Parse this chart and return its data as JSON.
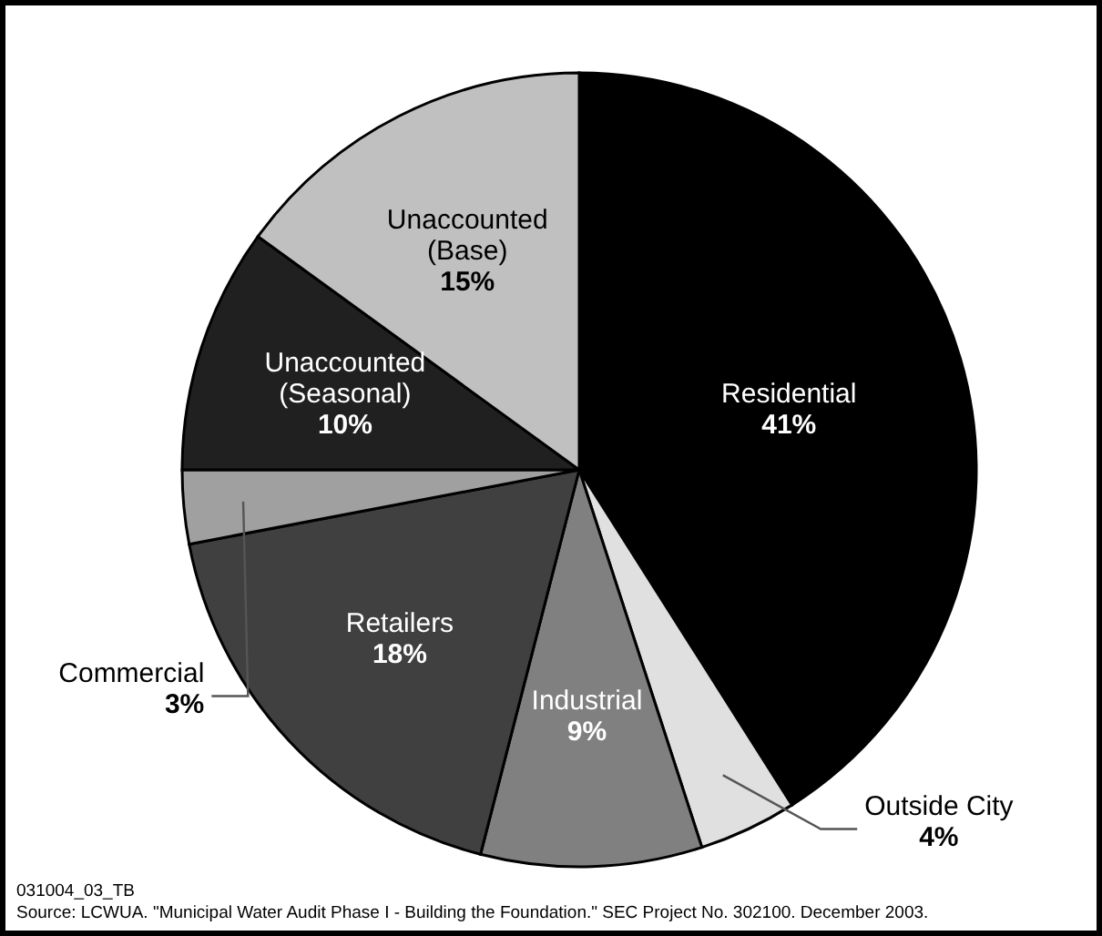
{
  "chart_data": {
    "type": "pie",
    "categories": [
      "Residential",
      "Outside City",
      "Industrial",
      "Retailers",
      "Commercial",
      "Unaccounted (Seasonal)",
      "Unaccounted (Base)"
    ],
    "values": [
      41,
      4,
      9,
      18,
      3,
      10,
      15
    ],
    "value_labels": [
      "41%",
      "4%",
      "9%",
      "18%",
      "3%",
      "10%",
      "15%"
    ],
    "colors": [
      "#000000",
      "#e0e0e0",
      "#808080",
      "#404040",
      "#a0a0a0",
      "#202020",
      "#c0c0c0"
    ],
    "legend": false,
    "annotations": [
      "031004_03_TB",
      "Source: LCWUA. \"Municipal Water Audit Phase I - Building the Foundation.\" SEC Project No. 302100. December 2003."
    ]
  }
}
